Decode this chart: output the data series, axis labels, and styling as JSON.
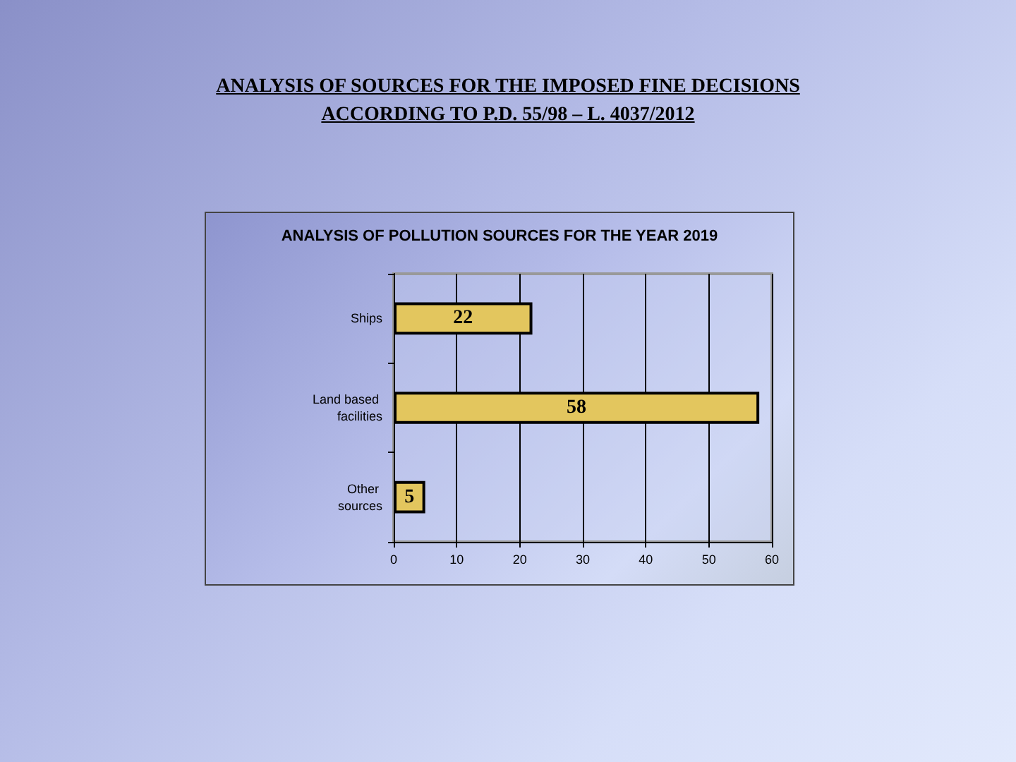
{
  "chart_data": {
    "type": "bar",
    "orientation": "horizontal",
    "title": "ANALYSIS OF SOURCES FOR THE IMPOSED FINE DECISIONS\nACCORDING TO P.D. 55/98 – L. 4037/2012",
    "subtitle": "ANALYSIS OF POLLUTION SOURCES FOR THE YEAR 2019",
    "categories": [
      "Ships",
      "Land based facilities",
      "Other sources"
    ],
    "values": [
      22,
      58,
      5
    ],
    "color": "#e3c65e",
    "xlim": [
      0,
      60
    ],
    "xticks": [
      0,
      10,
      20,
      30,
      40,
      50,
      60
    ],
    "grid": "x",
    "data_labels": true
  }
}
